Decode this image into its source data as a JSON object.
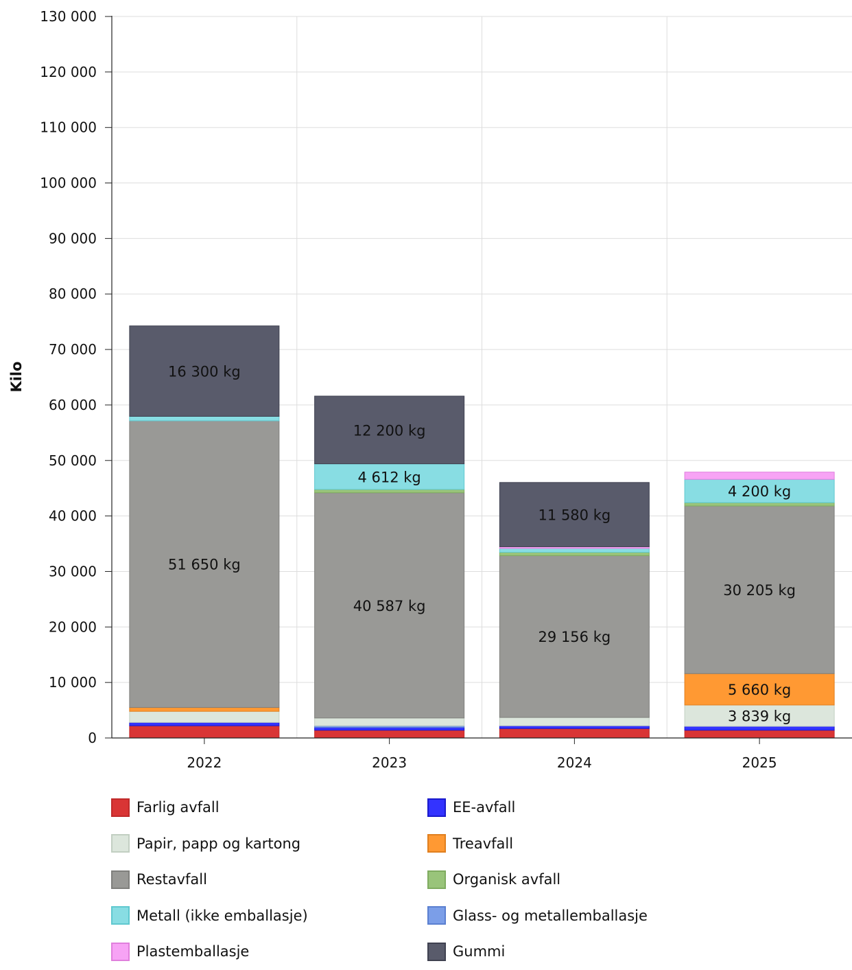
{
  "chart_data": {
    "type": "bar",
    "stacked": true,
    "title": "",
    "xlabel": "",
    "ylabel": "Kilo",
    "ylim": [
      0,
      130000
    ],
    "yticks": [
      0,
      10000,
      20000,
      30000,
      40000,
      50000,
      60000,
      70000,
      80000,
      90000,
      100000,
      110000,
      120000,
      130000
    ],
    "ytick_labels": [
      "0",
      "10 000",
      "20 000",
      "30 000",
      "40 000",
      "50 000",
      "60 000",
      "70 000",
      "80 000",
      "90 000",
      "100 000",
      "110 000",
      "120 000",
      "130 000"
    ],
    "categories": [
      "2022",
      "2023",
      "2024",
      "2025"
    ],
    "grid": true,
    "legend_position": "bottom",
    "series": [
      {
        "name": "Farlig avfall",
        "color": "#d93535",
        "border": "#c02a2a",
        "values": [
          2200,
          1400,
          1700,
          1400
        ]
      },
      {
        "name": "EE-avfall",
        "color": "#3333ff",
        "border": "#1a1acc",
        "values": [
          600,
          500,
          500,
          700
        ]
      },
      {
        "name": "Glass- og metallemballasje",
        "color": "#7b9ee8",
        "border": "#5a7fd0",
        "values": [
          0,
          300,
          0,
          0
        ]
      },
      {
        "name": "Papir, papp og kartong",
        "color": "#dce6dc",
        "border": "#c2cfc2",
        "values": [
          2000,
          1400,
          1500,
          3839
        ]
      },
      {
        "name": "Treavfall",
        "color": "#ff9933",
        "border": "#e07f1f",
        "values": [
          700,
          0,
          0,
          5660
        ]
      },
      {
        "name": "Restavfall",
        "color": "#999996",
        "border": "#7f7f7c",
        "values": [
          51650,
          40587,
          29156,
          30205
        ]
      },
      {
        "name": "Organisk avfall",
        "color": "#99c47a",
        "border": "#7fab60",
        "values": [
          0,
          600,
          600,
          600
        ]
      },
      {
        "name": "Metall (ikke emballasje)",
        "color": "#88dde3",
        "border": "#5fc8cf",
        "values": [
          800,
          4612,
          700,
          4200
        ]
      },
      {
        "name": "Plastemballasje",
        "color": "#f7a3f5",
        "border": "#e07fdc",
        "values": [
          0,
          0,
          300,
          1300
        ]
      },
      {
        "name": "Gummi",
        "color": "#595b6b",
        "border": "#3f4150",
        "values": [
          16300,
          12200,
          11580,
          0
        ]
      }
    ],
    "data_labels": [
      {
        "category": "2022",
        "series": "Gummi",
        "text": "16 300 kg"
      },
      {
        "category": "2022",
        "series": "Restavfall",
        "text": "51 650 kg"
      },
      {
        "category": "2023",
        "series": "Gummi",
        "text": "12 200 kg"
      },
      {
        "category": "2023",
        "series": "Metall (ikke emballasje)",
        "text": "4 612 kg"
      },
      {
        "category": "2023",
        "series": "Restavfall",
        "text": "40 587 kg"
      },
      {
        "category": "2024",
        "series": "Gummi",
        "text": "11 580 kg"
      },
      {
        "category": "2024",
        "series": "Restavfall",
        "text": "29 156 kg"
      },
      {
        "category": "2025",
        "series": "Metall (ikke emballasje)",
        "text": "4 200 kg"
      },
      {
        "category": "2025",
        "series": "Restavfall",
        "text": "30 205 kg"
      },
      {
        "category": "2025",
        "series": "Treavfall",
        "text": "5 660 kg"
      },
      {
        "category": "2025",
        "series": "Papir, papp og kartong",
        "text": "3 839 kg"
      }
    ]
  },
  "legend": {
    "items": [
      {
        "label": "Farlig avfall",
        "color": "#d93535",
        "border": "#c02a2a"
      },
      {
        "label": "EE-avfall",
        "color": "#3333ff",
        "border": "#1a1acc"
      },
      {
        "label": "Papir, papp og kartong",
        "color": "#dce6dc",
        "border": "#c2cfc2"
      },
      {
        "label": "Treavfall",
        "color": "#ff9933",
        "border": "#e07f1f"
      },
      {
        "label": "Restavfall",
        "color": "#999996",
        "border": "#7f7f7c"
      },
      {
        "label": "Organisk avfall",
        "color": "#99c47a",
        "border": "#7fab60"
      },
      {
        "label": "Metall (ikke emballasje)",
        "color": "#88dde3",
        "border": "#5fc8cf"
      },
      {
        "label": "Glass- og metallemballasje",
        "color": "#7b9ee8",
        "border": "#5a7fd0"
      },
      {
        "label": "Plastemballasje",
        "color": "#f7a3f5",
        "border": "#e07fdc"
      },
      {
        "label": "Gummi",
        "color": "#595b6b",
        "border": "#3f4150"
      }
    ]
  }
}
